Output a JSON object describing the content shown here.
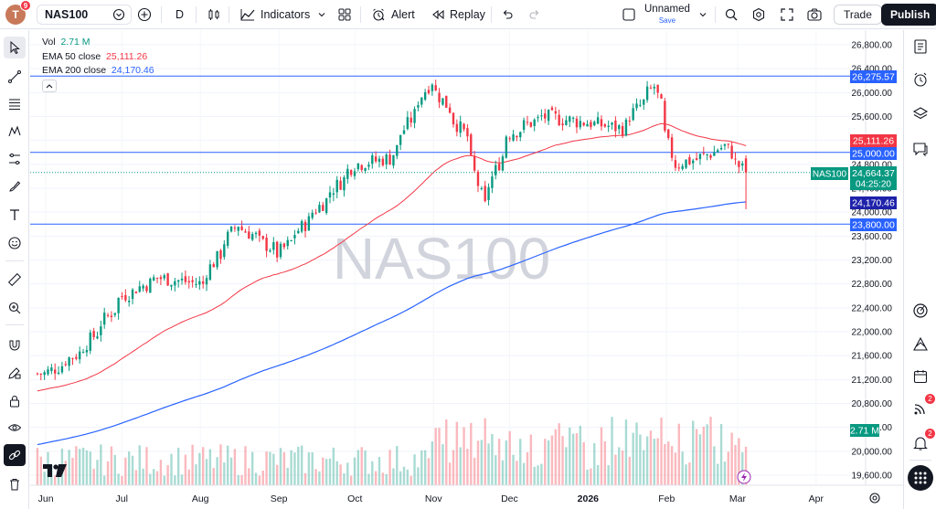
{
  "toolbar": {
    "avatar_letter": "T",
    "avatar_badge": "9",
    "symbol": "NAS100",
    "interval": "D",
    "indicators_label": "Indicators",
    "alert_label": "Alert",
    "replay_label": "Replay",
    "layout_name": "Unnamed",
    "layout_save": "Save",
    "trade_label": "Trade",
    "publish_label": "Publish"
  },
  "legend": {
    "vol_label": "Vol",
    "vol_value": "2.71 M",
    "ema50_label": "EMA 50 close",
    "ema50_value": "25,111.26",
    "ema200_label": "EMA 200 close",
    "ema200_value": "24,170.46"
  },
  "watermark": "NAS100",
  "price_axis": {
    "ticks": [
      "26,800.00",
      "26,400.00",
      "26,000.00",
      "25,600.00",
      "25,200.00",
      "24,800.00",
      "24,400.00",
      "24,000.00",
      "23,600.00",
      "23,200.00",
      "22,800.00",
      "22,400.00",
      "22,000.00",
      "21,600.00",
      "21,200.00",
      "20,800.00",
      "20,400.00",
      "20,000.00",
      "19,600.00"
    ],
    "labels": {
      "top_line": "26,275.57",
      "ema50": "25,111.26",
      "line_25000": "25,000.00",
      "symbol_tag": "NAS100",
      "last_price": "24,664.37",
      "countdown": "04:25:20",
      "ema200": "24,170.46",
      "line_23800": "23,800.00",
      "volume": "2.71 M"
    }
  },
  "time_axis": {
    "labels": [
      "Jun",
      "Jul",
      "Aug",
      "Sep",
      "Oct",
      "Nov",
      "Dec",
      "2026",
      "Feb",
      "Mar",
      "Apr"
    ]
  },
  "right_sidebar": {
    "ideas_badge": "2",
    "alerts_badge": "2"
  },
  "colors": {
    "up": "#089981",
    "down": "#f23645",
    "ema50": "#f23645",
    "ema200": "#2962ff",
    "hline": "#2962ff"
  },
  "chart_data": {
    "type": "candlestick",
    "symbol": "NAS100",
    "interval": "D",
    "x_range": [
      "2025-05-28",
      "2026-03-05"
    ],
    "ylim": [
      19600,
      26800
    ],
    "ema_50_last": 25111.26,
    "ema_200_last": 24170.46,
    "horizontal_lines": [
      26275.57,
      25000.0,
      23800.0
    ],
    "last_price": 24664.37,
    "volume_last": "2.71 M",
    "price_path_approx": [
      {
        "date": "2025-06-01",
        "close": 21300
      },
      {
        "date": "2025-06-15",
        "close": 21700
      },
      {
        "date": "2025-07-01",
        "close": 22600
      },
      {
        "date": "2025-07-15",
        "close": 22900
      },
      {
        "date": "2025-08-01",
        "close": 22800
      },
      {
        "date": "2025-08-15",
        "close": 23800
      },
      {
        "date": "2025-09-01",
        "close": 23300
      },
      {
        "date": "2025-09-15",
        "close": 24000
      },
      {
        "date": "2025-10-01",
        "close": 24800
      },
      {
        "date": "2025-10-15",
        "close": 24900
      },
      {
        "date": "2025-10-31",
        "close": 26200
      },
      {
        "date": "2025-11-15",
        "close": 25200
      },
      {
        "date": "2025-11-21",
        "close": 24100
      },
      {
        "date": "2025-12-01",
        "close": 25300
      },
      {
        "date": "2025-12-15",
        "close": 25600
      },
      {
        "date": "2026-01-01",
        "close": 25500
      },
      {
        "date": "2026-01-15",
        "close": 25400
      },
      {
        "date": "2026-01-28",
        "close": 26100
      },
      {
        "date": "2026-02-05",
        "close": 24800
      },
      {
        "date": "2026-02-15",
        "close": 24900
      },
      {
        "date": "2026-02-25",
        "close": 25100
      },
      {
        "date": "2026-03-05",
        "close": 24664
      }
    ]
  }
}
